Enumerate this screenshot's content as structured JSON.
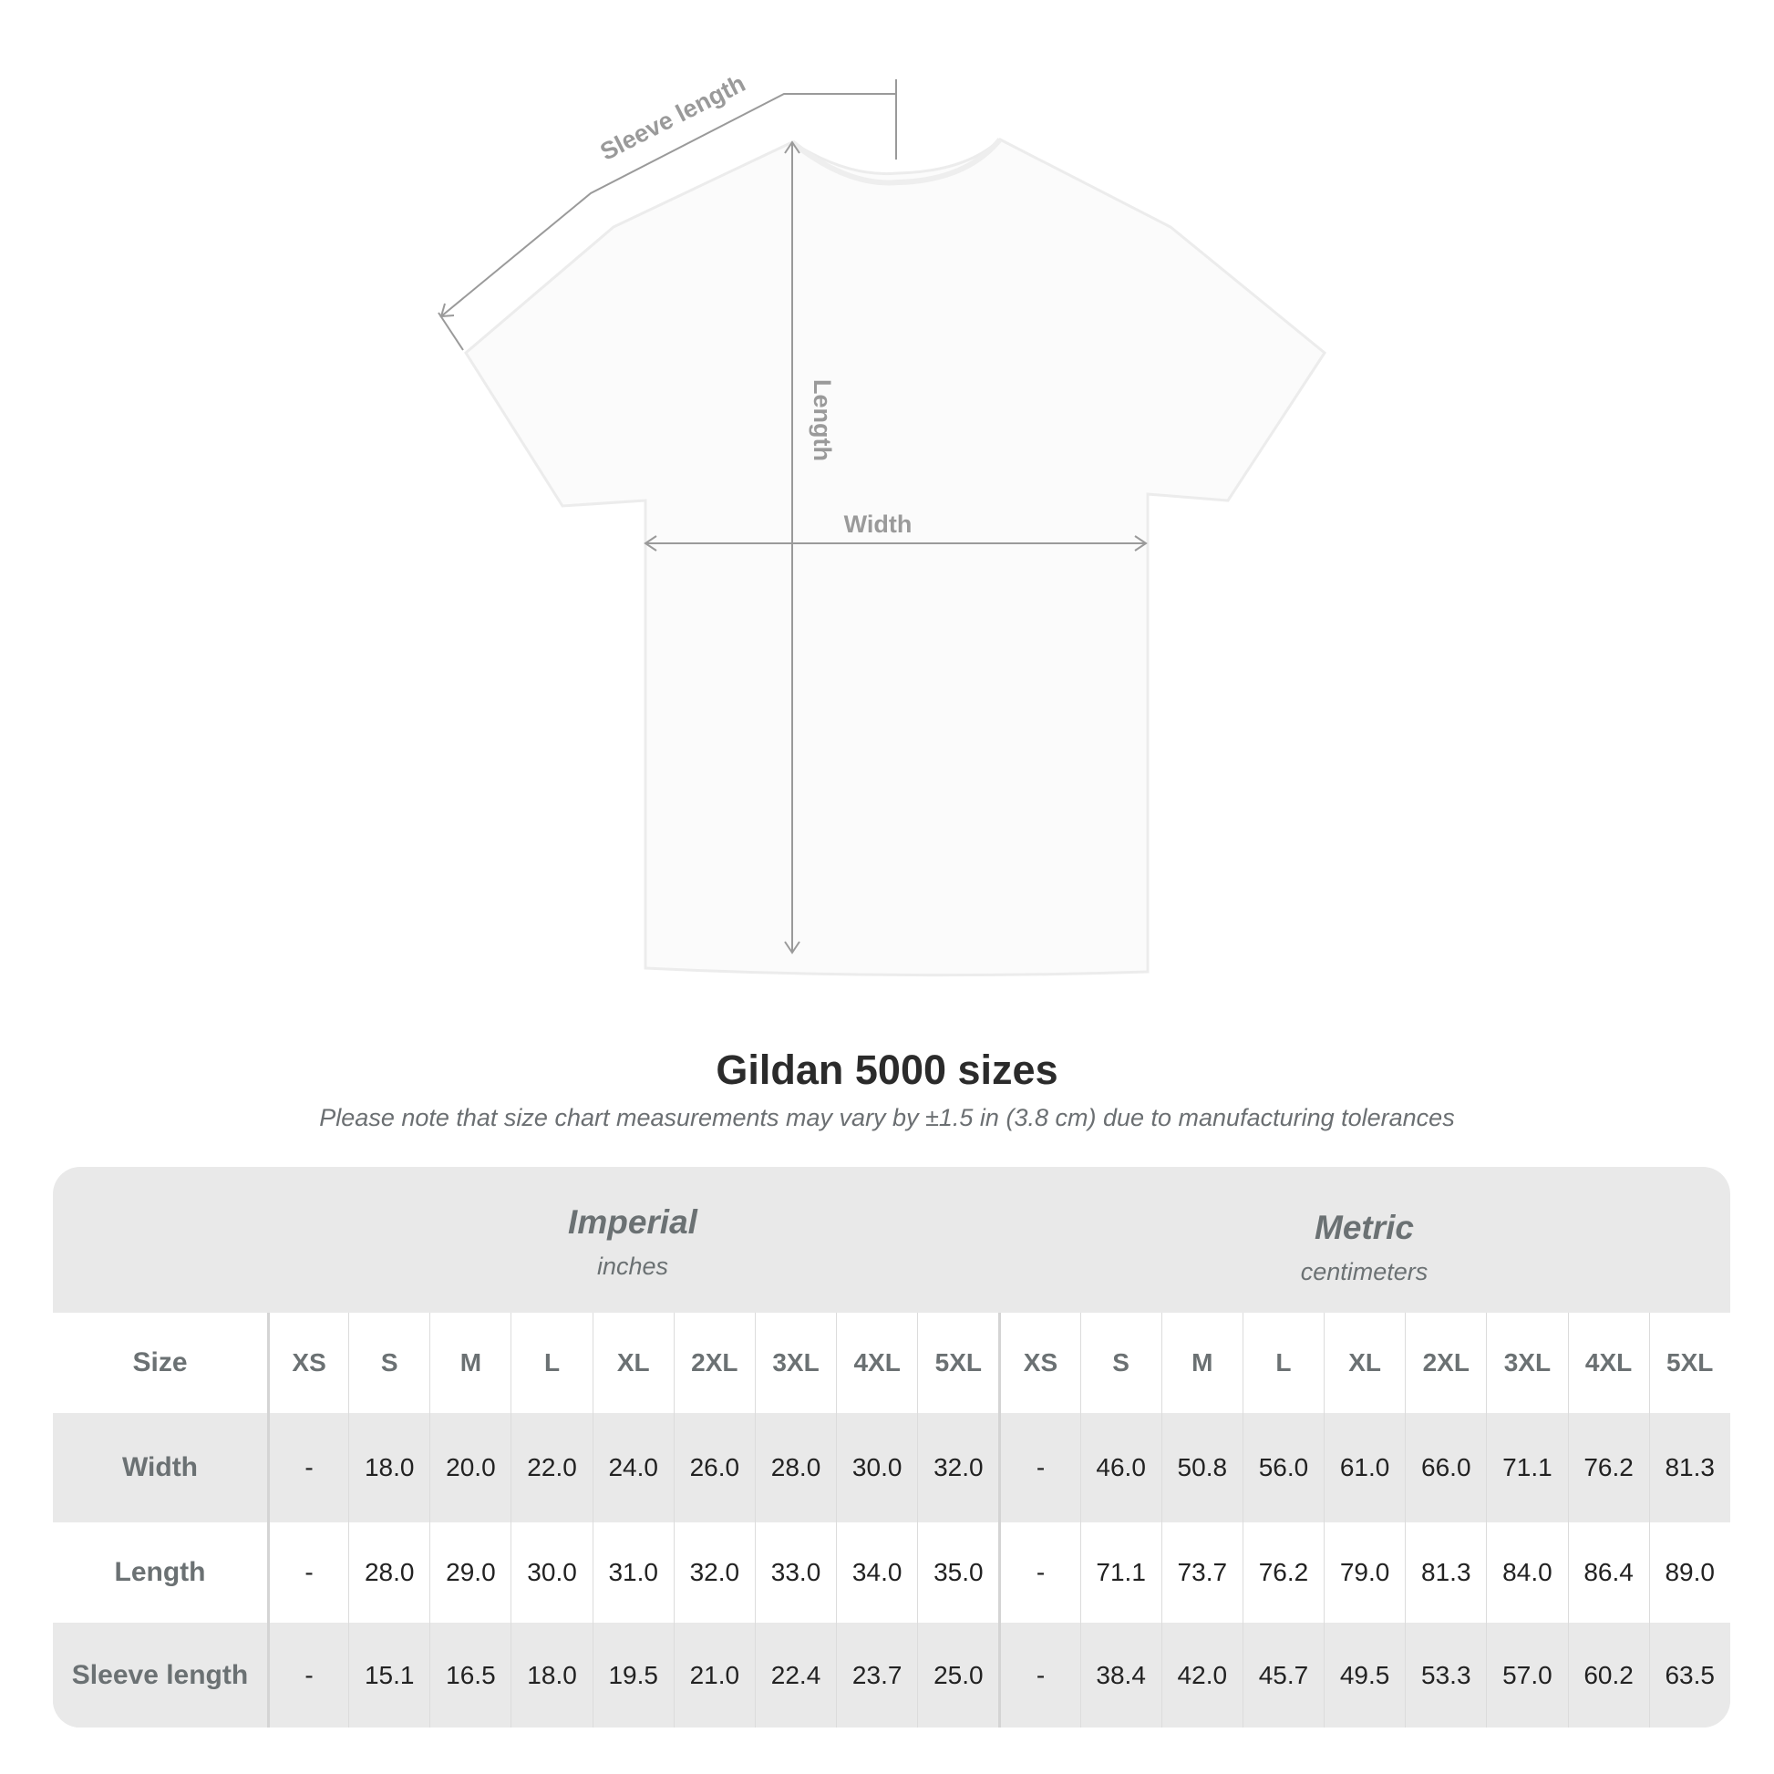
{
  "diagram": {
    "labels": {
      "sleeve": "Sleeve length",
      "length": "Length",
      "width": "Width"
    }
  },
  "title": "Gildan 5000 sizes",
  "note": "Please note that size chart measurements may vary by ±1.5 in (3.8 cm) due to manufacturing tolerances",
  "table": {
    "imperial": {
      "label": "Imperial",
      "unit": "inches"
    },
    "metric": {
      "label": "Metric",
      "unit": "centimeters"
    },
    "size_label": "Size",
    "sizes": [
      "XS",
      "S",
      "M",
      "L",
      "XL",
      "2XL",
      "3XL",
      "4XL",
      "5XL"
    ],
    "rows": [
      {
        "label": "Width",
        "imperial": [
          "-",
          "18.0",
          "20.0",
          "22.0",
          "24.0",
          "26.0",
          "28.0",
          "30.0",
          "32.0"
        ],
        "metric": [
          "-",
          "46.0",
          "50.8",
          "56.0",
          "61.0",
          "66.0",
          "71.1",
          "76.2",
          "81.3"
        ]
      },
      {
        "label": "Length",
        "imperial": [
          "-",
          "28.0",
          "29.0",
          "30.0",
          "31.0",
          "32.0",
          "33.0",
          "34.0",
          "35.0"
        ],
        "metric": [
          "-",
          "71.1",
          "73.7",
          "76.2",
          "79.0",
          "81.3",
          "84.0",
          "86.4",
          "89.0"
        ]
      },
      {
        "label": "Sleeve length",
        "imperial": [
          "-",
          "15.1",
          "16.5",
          "18.0",
          "19.5",
          "21.0",
          "22.4",
          "23.7",
          "25.0"
        ],
        "metric": [
          "-",
          "38.4",
          "42.0",
          "45.7",
          "49.5",
          "53.3",
          "57.0",
          "60.2",
          "63.5"
        ]
      }
    ]
  }
}
